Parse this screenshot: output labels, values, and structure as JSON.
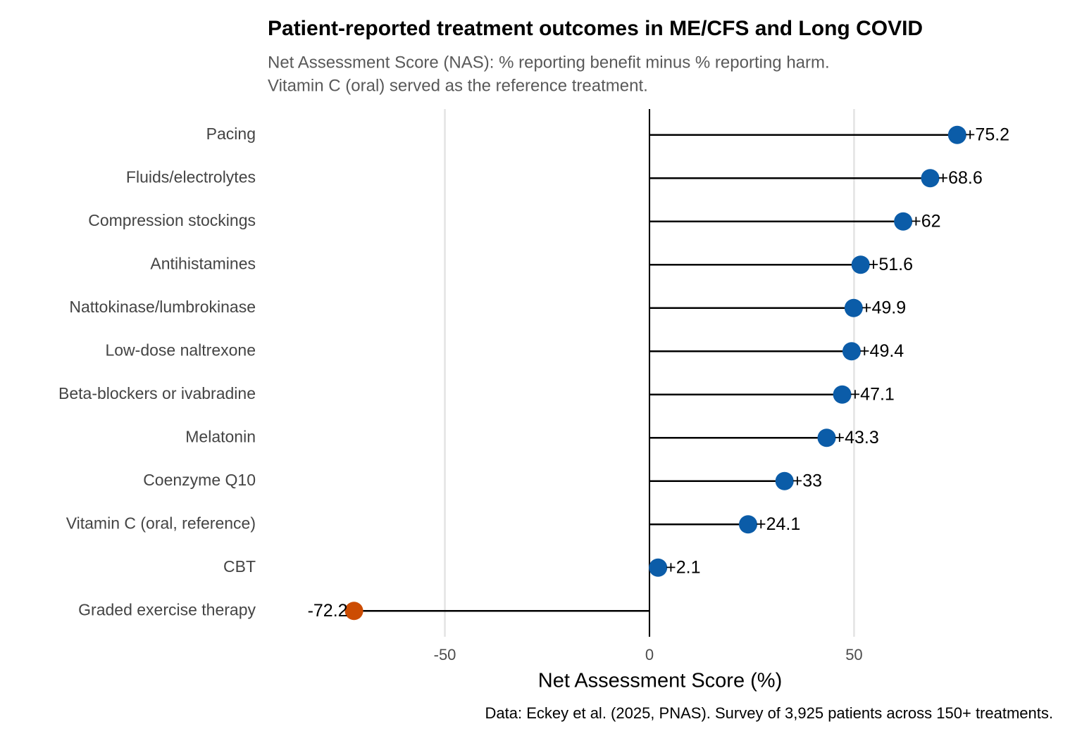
{
  "chart_data": {
    "type": "lollipop",
    "title": "Patient-reported treatment outcomes in ME/CFS and Long COVID",
    "subtitle": [
      "Net Assessment Score (NAS): % reporting benefit minus % reporting harm.",
      "Vitamin C (oral) served as the reference treatment."
    ],
    "x_label": "Net Assessment Score (%)",
    "caption": "Data: Eckey et al. (2025, PNAS). Survey of 3,925 patients across 150+ treatments.",
    "categories": [
      "Pacing",
      "Fluids/electrolytes",
      "Compression stockings",
      "Antihistamines",
      "Nattokinase/lumbrokinase",
      "Low-dose naltrexone",
      "Beta-blockers or ivabradine",
      "Melatonin",
      "Coenzyme Q10",
      "Vitamin C (oral, reference)",
      "CBT",
      "Graded exercise therapy"
    ],
    "values": [
      75.2,
      68.6,
      62,
      51.6,
      49.9,
      49.4,
      47.1,
      43.3,
      33,
      24.1,
      2.1,
      -72.2
    ],
    "value_labels": [
      "+75.2",
      "+68.6",
      "+62",
      "+51.6",
      "+49.9",
      "+49.4",
      "+47.1",
      "+43.3",
      "+33",
      "+24.1",
      "+2.1",
      "-72.2"
    ],
    "colors": [
      "#0b5ca8",
      "#0b5ca8",
      "#0b5ca8",
      "#0b5ca8",
      "#0b5ca8",
      "#0b5ca8",
      "#0b5ca8",
      "#0b5ca8",
      "#0b5ca8",
      "#0b5ca8",
      "#0b5ca8",
      "#cc4c02"
    ],
    "xlim": [
      -93.3,
      105.7
    ],
    "xticks": [
      -50,
      0,
      50
    ],
    "grid": true
  }
}
